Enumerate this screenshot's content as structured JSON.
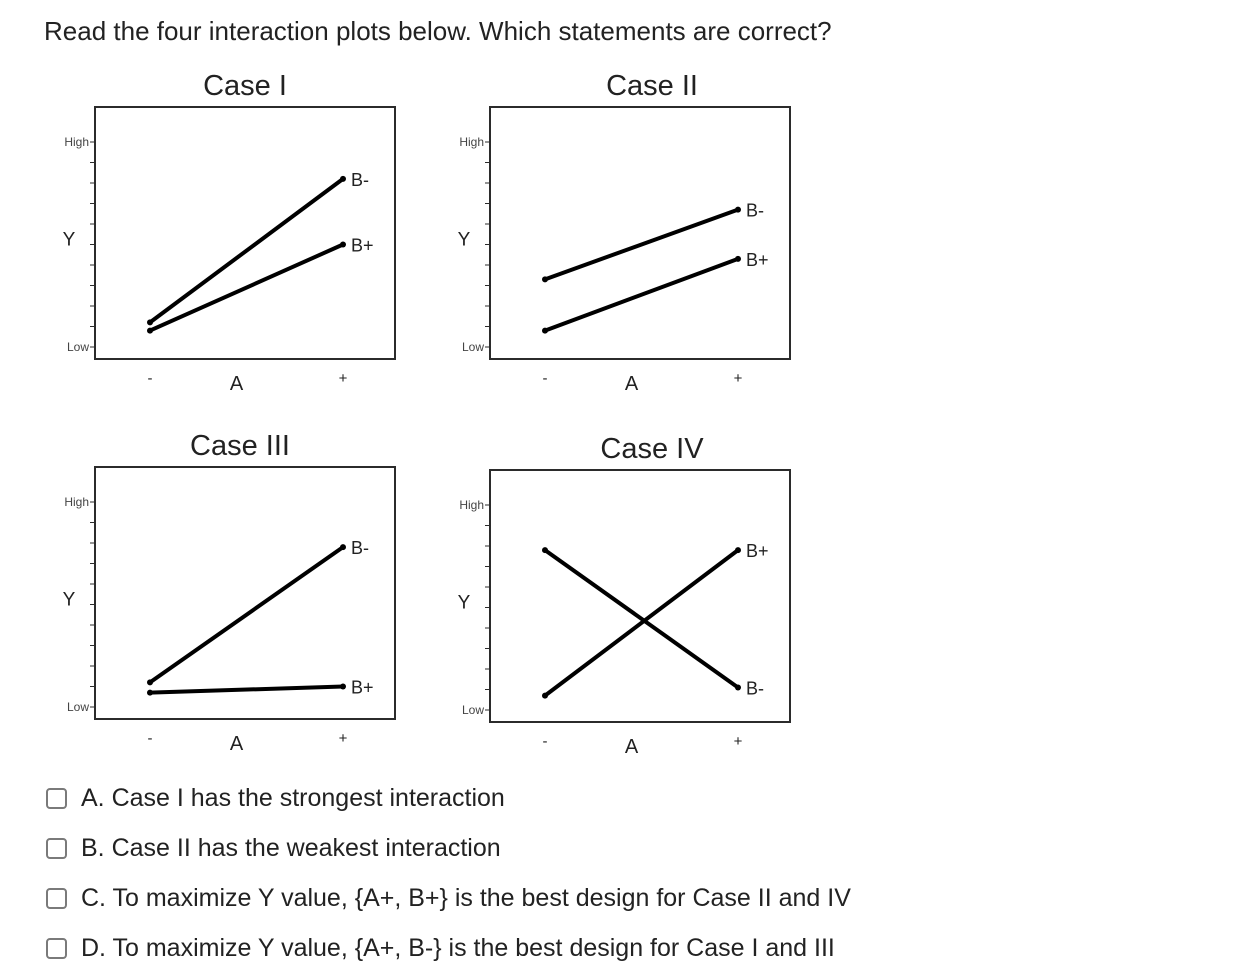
{
  "question": "Read the four interaction plots below. Which statements are correct?",
  "chart_data": [
    {
      "type": "line",
      "title": "Case I",
      "xlabel": "A",
      "ylabel": "Y",
      "x_ticks": [
        "-",
        "+"
      ],
      "y_ticks": [
        "Low",
        "High"
      ],
      "ylim": [
        0,
        1
      ],
      "series": [
        {
          "name": "B-",
          "values": [
            0.12,
            0.82
          ]
        },
        {
          "name": "B+",
          "values": [
            0.08,
            0.5
          ]
        }
      ]
    },
    {
      "type": "line",
      "title": "Case II",
      "xlabel": "A",
      "ylabel": "Y",
      "x_ticks": [
        "-",
        "+"
      ],
      "y_ticks": [
        "Low",
        "High"
      ],
      "ylim": [
        0,
        1
      ],
      "series": [
        {
          "name": "B-",
          "values": [
            0.33,
            0.67
          ]
        },
        {
          "name": "B+",
          "values": [
            0.08,
            0.43
          ]
        }
      ]
    },
    {
      "type": "line",
      "title": "Case III",
      "xlabel": "A",
      "ylabel": "Y",
      "x_ticks": [
        "-",
        "+"
      ],
      "y_ticks": [
        "Low",
        "High"
      ],
      "ylim": [
        0,
        1
      ],
      "series": [
        {
          "name": "B-",
          "values": [
            0.12,
            0.78
          ]
        },
        {
          "name": "B+",
          "values": [
            0.07,
            0.1
          ]
        }
      ]
    },
    {
      "type": "line",
      "title": "Case IV",
      "xlabel": "A",
      "ylabel": "Y",
      "x_ticks": [
        "-",
        "+"
      ],
      "y_ticks": [
        "Low",
        "High"
      ],
      "ylim": [
        0,
        1
      ],
      "series": [
        {
          "name": "B-",
          "values": [
            0.78,
            0.11
          ]
        },
        {
          "name": "B+",
          "values": [
            0.07,
            0.78
          ]
        }
      ]
    }
  ],
  "options": [
    {
      "label": "A. Case I has the strongest interaction"
    },
    {
      "label": "B. Case II has the weakest interaction"
    },
    {
      "label": "C. To maximize Y value, {A+, B+} is the best design for Case II and IV"
    },
    {
      "label": "D. To maximize Y value, {A+, B-} is the best design for Case I and III"
    }
  ],
  "colors": {
    "line": "#000000",
    "frame": "#2b2b2b",
    "checkbox_border": "#7a7a7a"
  }
}
